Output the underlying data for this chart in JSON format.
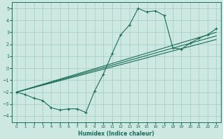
{
  "xlabel": "Humidex (Indice chaleur)",
  "bg_color": "#cce8e0",
  "grid_color": "#a8d0c8",
  "line_color": "#1a6b5a",
  "xlim": [
    -0.5,
    23.5
  ],
  "ylim": [
    -4.5,
    5.5
  ],
  "xticks": [
    0,
    1,
    2,
    3,
    4,
    5,
    6,
    7,
    8,
    9,
    10,
    11,
    12,
    13,
    14,
    15,
    16,
    17,
    18,
    19,
    20,
    21,
    22,
    23
  ],
  "yticks": [
    -4,
    -3,
    -2,
    -1,
    0,
    1,
    2,
    3,
    4,
    5
  ],
  "main_x": [
    0,
    1,
    2,
    3,
    4,
    5,
    6,
    7,
    8,
    9,
    10,
    11,
    12,
    13,
    14,
    15,
    16,
    17,
    18,
    19,
    20,
    21,
    22,
    23
  ],
  "main_y": [
    -2.0,
    -2.2,
    -2.5,
    -2.7,
    -3.3,
    -3.5,
    -3.4,
    -3.4,
    -3.7,
    -1.9,
    -0.5,
    1.2,
    2.8,
    3.6,
    5.0,
    4.7,
    4.8,
    4.4,
    1.7,
    1.6,
    2.1,
    2.5,
    2.8,
    3.3
  ],
  "line1_x": [
    0,
    23
  ],
  "line1_y": [
    -2.0,
    3.0
  ],
  "line2_x": [
    0,
    23
  ],
  "line2_y": [
    -2.0,
    2.7
  ],
  "line3_x": [
    0,
    23
  ],
  "line3_y": [
    -2.0,
    2.4
  ]
}
